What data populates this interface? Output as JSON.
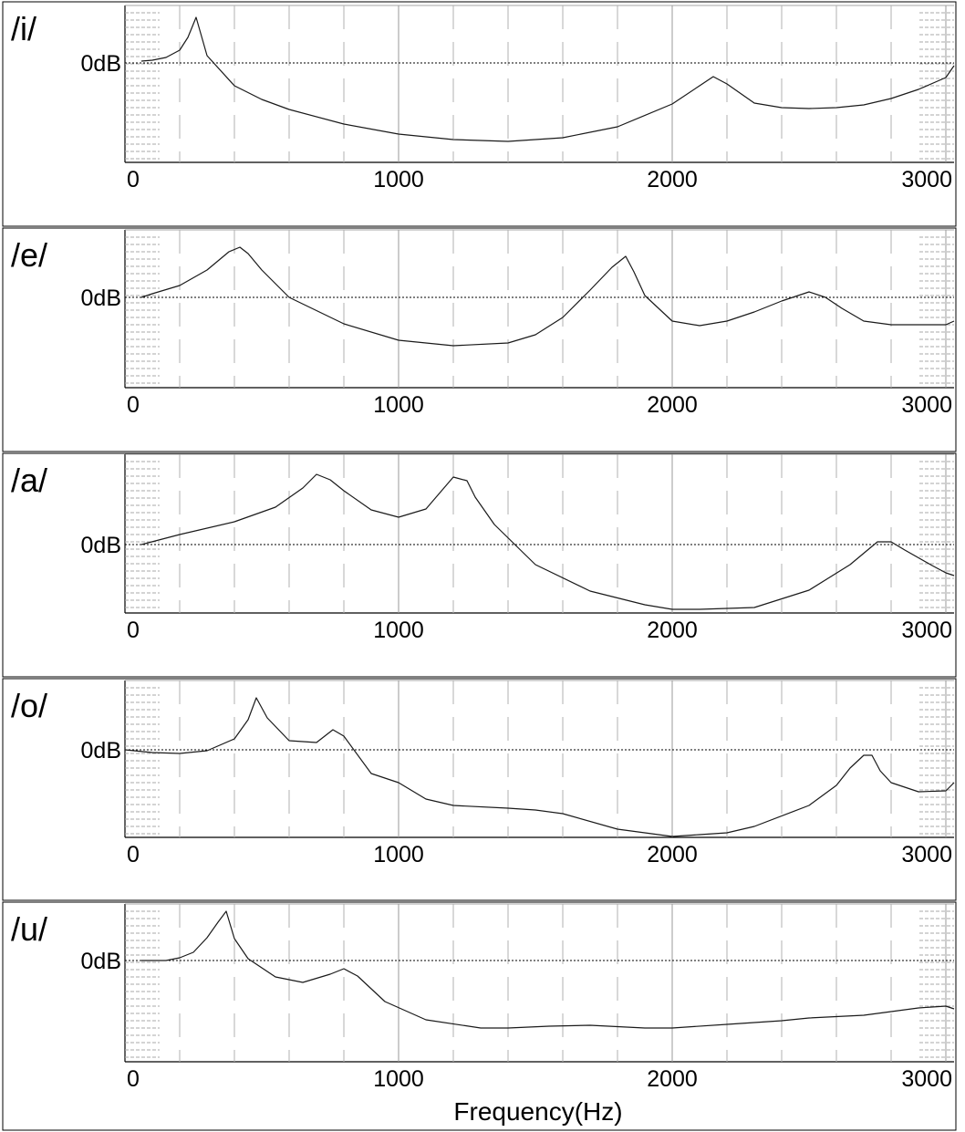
{
  "xaxis_title": "Frequency(Hz)",
  "zero_db_label": "0dB",
  "chart_data": [
    {
      "type": "line",
      "title": "/i/",
      "xlabel": "Frequency(Hz)",
      "ylabel": "",
      "xlim": [
        0,
        3000
      ],
      "x_ticks": [
        "0",
        "1000",
        "2000",
        "3000"
      ],
      "y_reference_label": "0dB",
      "grid": true,
      "series": [
        {
          "x": [
            60,
            100,
            150,
            200,
            230,
            260,
            300,
            400,
            500,
            600,
            800,
            1000,
            1200,
            1400,
            1600,
            1800,
            2000,
            2100,
            2150,
            2200,
            2300,
            2400,
            2500,
            2600,
            2700,
            2800,
            2900,
            3000,
            3100
          ],
          "y": [
            0.2,
            0.3,
            0.6,
            1.4,
            2.8,
            5.0,
            0.8,
            -2.5,
            -4.0,
            -5.1,
            -6.7,
            -7.8,
            -8.4,
            -8.6,
            -8.2,
            -7.0,
            -4.5,
            -2.5,
            -1.5,
            -2.3,
            -4.4,
            -4.9,
            -5.0,
            -4.9,
            -4.6,
            -3.9,
            -2.9,
            -1.6,
            -0.3
          ]
        }
      ]
    },
    {
      "type": "line",
      "title": "/e/",
      "xlabel": "Frequency(Hz)",
      "ylabel": "",
      "xlim": [
        0,
        3000
      ],
      "x_ticks": [
        "0",
        "1000",
        "2000",
        "3000"
      ],
      "y_reference_label": "0dB",
      "grid": true,
      "series": [
        {
          "x": [
            60,
            100,
            200,
            300,
            380,
            420,
            450,
            500,
            600,
            800,
            1000,
            1200,
            1400,
            1500,
            1600,
            1700,
            1780,
            1830,
            1860,
            1900,
            2000,
            2100,
            2200,
            2300,
            2400,
            2500,
            2560,
            2620,
            2700,
            2800,
            2900,
            3000,
            3100
          ],
          "y": [
            0,
            0.4,
            1.3,
            3.0,
            5.0,
            5.5,
            4.8,
            3.0,
            0.0,
            -2.9,
            -4.7,
            -5.3,
            -5.0,
            -4.1,
            -2.2,
            0.8,
            3.3,
            4.5,
            2.8,
            0.2,
            -2.6,
            -3.1,
            -2.6,
            -1.6,
            -0.4,
            0.6,
            0.0,
            -1.2,
            -2.6,
            -3.0,
            -3.0,
            -3.0,
            -2.6
          ]
        }
      ]
    },
    {
      "type": "line",
      "title": "/a/",
      "xlabel": "Frequency(Hz)",
      "ylabel": "",
      "xlim": [
        0,
        3000
      ],
      "x_ticks": [
        "0",
        "1000",
        "2000",
        "3000"
      ],
      "y_reference_label": "0dB",
      "grid": true,
      "series": [
        {
          "x": [
            60,
            200,
            400,
            550,
            650,
            700,
            750,
            800,
            900,
            1000,
            1100,
            1200,
            1250,
            1280,
            1350,
            1500,
            1700,
            1900,
            2000,
            2100,
            2300,
            2500,
            2650,
            2750,
            2800,
            2850,
            2950,
            3000,
            3100
          ],
          "y": [
            0,
            1.1,
            2.5,
            4.1,
            6.2,
            7.7,
            7.1,
            5.9,
            3.8,
            3.0,
            3.9,
            7.4,
            7.0,
            5.2,
            2.2,
            -2.2,
            -5.1,
            -6.6,
            -7.1,
            -7.1,
            -6.9,
            -5.0,
            -2.2,
            0.3,
            0.3,
            -0.6,
            -2.3,
            -3.1,
            -3.4
          ]
        }
      ]
    },
    {
      "type": "line",
      "title": "/o/",
      "xlabel": "Frequency(Hz)",
      "ylabel": "",
      "xlim": [
        0,
        3000
      ],
      "x_ticks": [
        "0",
        "1000",
        "2000",
        "3000"
      ],
      "y_reference_label": "0dB",
      "grid": true,
      "series": [
        {
          "x": [
            0,
            100,
            200,
            300,
            400,
            450,
            480,
            520,
            600,
            700,
            760,
            800,
            900,
            1000,
            1100,
            1200,
            1400,
            1500,
            1600,
            1800,
            2000,
            2100,
            2200,
            2300,
            2500,
            2600,
            2650,
            2700,
            2730,
            2760,
            2800,
            2900,
            3000,
            3100
          ],
          "y": [
            0,
            -0.3,
            -0.4,
            -0.1,
            1.2,
            3.3,
            5.7,
            3.5,
            1.0,
            0.8,
            2.2,
            1.5,
            -2.6,
            -3.6,
            -5.4,
            -6.1,
            -6.4,
            -6.6,
            -7.0,
            -8.7,
            -9.5,
            -9.3,
            -9.1,
            -8.4,
            -6.1,
            -3.9,
            -2.0,
            -0.6,
            -0.6,
            -2.3,
            -3.6,
            -4.6,
            -4.5,
            -3.6
          ]
        }
      ]
    },
    {
      "type": "line",
      "title": "/u/",
      "xlabel": "Frequency(Hz)",
      "ylabel": "",
      "xlim": [
        0,
        3000
      ],
      "x_ticks": [
        "0",
        "1000",
        "2000",
        "3000"
      ],
      "y_reference_label": "0dB",
      "grid": true,
      "series": [
        {
          "x": [
            60,
            150,
            200,
            250,
            300,
            340,
            370,
            400,
            450,
            550,
            650,
            750,
            800,
            850,
            950,
            1100,
            1300,
            1400,
            1550,
            1700,
            1900,
            2000,
            2200,
            2400,
            2500,
            2700,
            2900,
            3000,
            3100
          ],
          "y": [
            0,
            0,
            0.3,
            0.9,
            2.5,
            4.2,
            5.4,
            2.4,
            0.2,
            -1.8,
            -2.4,
            -1.5,
            -0.9,
            -1.7,
            -4.5,
            -6.5,
            -7.4,
            -7.4,
            -7.2,
            -7.1,
            -7.4,
            -7.4,
            -7.0,
            -6.6,
            -6.3,
            -6.0,
            -5.2,
            -5.0,
            -5.3
          ]
        }
      ]
    }
  ]
}
